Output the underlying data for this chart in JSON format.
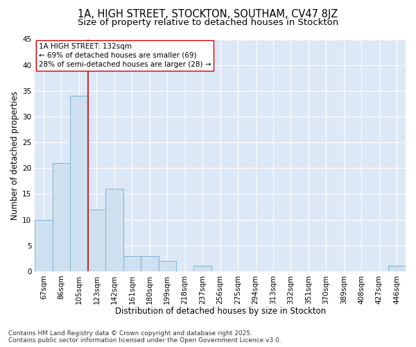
{
  "title1": "1A, HIGH STREET, STOCKTON, SOUTHAM, CV47 8JZ",
  "title2": "Size of property relative to detached houses in Stockton",
  "xlabel": "Distribution of detached houses by size in Stockton",
  "ylabel": "Number of detached properties",
  "categories": [
    "67sqm",
    "86sqm",
    "105sqm",
    "123sqm",
    "142sqm",
    "161sqm",
    "180sqm",
    "199sqm",
    "218sqm",
    "237sqm",
    "256sqm",
    "275sqm",
    "294sqm",
    "313sqm",
    "332sqm",
    "351sqm",
    "370sqm",
    "389sqm",
    "408sqm",
    "427sqm",
    "446sqm"
  ],
  "values": [
    10,
    21,
    34,
    12,
    16,
    3,
    3,
    2,
    0,
    1,
    0,
    0,
    0,
    0,
    0,
    0,
    0,
    0,
    0,
    0,
    1
  ],
  "bar_color": "#cfe0f0",
  "bar_edge_color": "#7ab4d8",
  "vline_x": 2.5,
  "vline_color": "#cc0000",
  "annotation_text": "1A HIGH STREET: 132sqm\n← 69% of detached houses are smaller (69)\n28% of semi-detached houses are larger (28) →",
  "annotation_box_facecolor": "#ffffff",
  "annotation_box_edgecolor": "#cc0000",
  "ylim": [
    0,
    45
  ],
  "yticks": [
    0,
    5,
    10,
    15,
    20,
    25,
    30,
    35,
    40,
    45
  ],
  "bg_color": "#ffffff",
  "plot_bg_color": "#dce8f5",
  "grid_color": "#ffffff",
  "footer": "Contains HM Land Registry data © Crown copyright and database right 2025.\nContains public sector information licensed under the Open Government Licence v3.0.",
  "title_fontsize": 10.5,
  "subtitle_fontsize": 9.5,
  "axis_label_fontsize": 8.5,
  "tick_fontsize": 7.5,
  "annotation_fontsize": 7.5,
  "footer_fontsize": 6.5
}
